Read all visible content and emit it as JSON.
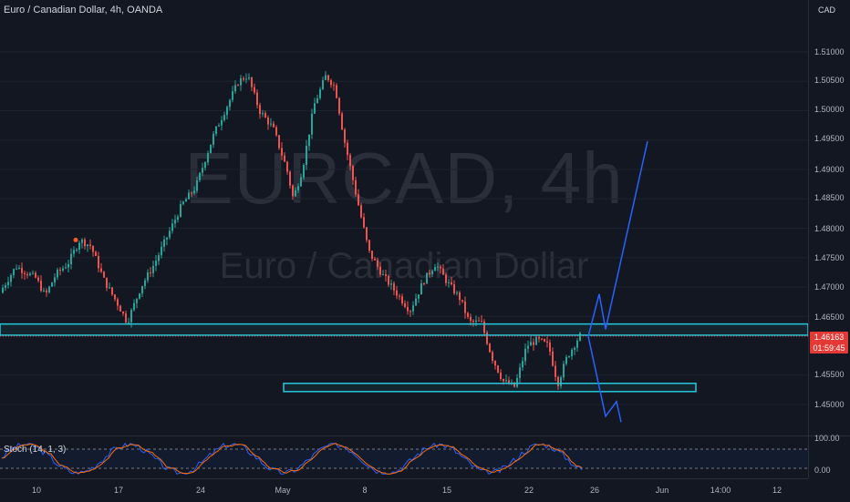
{
  "header": {
    "title": "Euro / Canadian Dollar, 4h, OANDA"
  },
  "watermark": {
    "symbol": "EURCAD, 4h",
    "description": "Euro / Canadian Dollar"
  },
  "price_axis": {
    "currency": "CAD",
    "ticks": [
      "1.51000",
      "1.50500",
      "1.50000",
      "1.49500",
      "1.49000",
      "1.48500",
      "1.48000",
      "1.47500",
      "1.47000",
      "1.46500",
      "1.45500",
      "1.45000"
    ],
    "current_price": "1.46163",
    "countdown": "01:59:45"
  },
  "indicator": {
    "label": "Stoch (14, 1, 3)",
    "ticks": [
      "100.00",
      "0.00"
    ]
  },
  "time_axis": {
    "ticks": [
      "10",
      "17",
      "24",
      "May",
      "8",
      "15",
      "22",
      "26",
      "Jun",
      "14:00",
      "12"
    ]
  },
  "colors": {
    "background": "#131722",
    "bull": "#26a69a",
    "bear": "#ef5350",
    "zone": "#26c6da",
    "projection": "#2962ff",
    "stoch_k": "#2962ff",
    "stoch_d": "#ff6d00"
  },
  "chart_data": {
    "type": "candlestick",
    "symbol": "EURCAD",
    "timeframe": "4h",
    "ylim": [
      1.4465,
      1.5145
    ],
    "zones": [
      {
        "from": 1.4618,
        "to": 1.4637
      },
      {
        "from": 1.4522,
        "to": 1.4536
      }
    ],
    "projection_up": [
      [
        1.4616,
        1.4688
      ],
      [
        1.4628,
        1.4948
      ]
    ],
    "projection_down": [
      [
        1.4616,
        1.4528
      ],
      [
        1.448,
        1.4505
      ],
      [
        1.447
      ]
    ]
  }
}
